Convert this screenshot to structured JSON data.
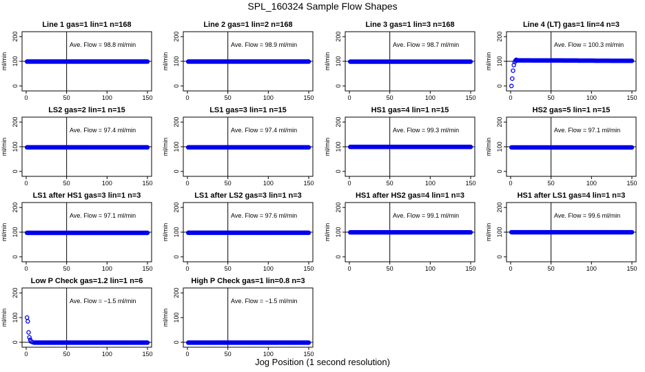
{
  "figure": {
    "title": "SPL_160324  Sample Flow Shapes",
    "xlabel": "Jog Position (1 second resolution)",
    "ylabel": "ml/min",
    "ave_prefix": "Ave. Flow =",
    "ave_unit": "ml/min"
  },
  "chart_data": [
    {
      "type": "scatter",
      "title": "Line 1 gas=1 lin=1 n=168",
      "ylabel": "ml/min",
      "avg_flow": "98.8",
      "xlim": [
        0,
        150
      ],
      "ylim": [
        -20,
        220
      ],
      "yticks": [
        0,
        100,
        200
      ],
      "xticks": [
        0,
        50,
        100,
        150
      ],
      "vline": 50,
      "hline": 100,
      "series": [
        {
          "x": [
            1,
            150
          ],
          "y": [
            98.8,
            98.8
          ]
        }
      ]
    },
    {
      "type": "scatter",
      "title": "Line 2 gas=1 lin=2 n=168",
      "ylabel": "ml/min",
      "avg_flow": "98.9",
      "xlim": [
        0,
        150
      ],
      "ylim": [
        -20,
        220
      ],
      "yticks": [
        0,
        100,
        200
      ],
      "xticks": [
        0,
        50,
        100,
        150
      ],
      "vline": 50,
      "hline": 100,
      "series": [
        {
          "x": [
            1,
            150
          ],
          "y": [
            98.9,
            98.9
          ]
        }
      ]
    },
    {
      "type": "scatter",
      "title": "Line 3 gas=1 lin=3 n=168",
      "ylabel": "ml/min",
      "avg_flow": "98.7",
      "xlim": [
        0,
        150
      ],
      "ylim": [
        -20,
        220
      ],
      "yticks": [
        0,
        100,
        200
      ],
      "xticks": [
        0,
        50,
        100,
        150
      ],
      "vline": 50,
      "hline": 100,
      "series": [
        {
          "x": [
            1,
            150
          ],
          "y": [
            98.7,
            98.7
          ]
        }
      ]
    },
    {
      "type": "scatter",
      "title": "Line 4 (LT) gas=1 lin=4 n=3",
      "ylabel": "ml/min",
      "avg_flow": "100.3",
      "xlim": [
        0,
        150
      ],
      "ylim": [
        -20,
        220
      ],
      "yticks": [
        0,
        100,
        200
      ],
      "xticks": [
        0,
        50,
        100,
        150
      ],
      "vline": 50,
      "hline": 100,
      "series": [
        {
          "x": [
            1,
            2,
            3,
            4,
            5,
            6,
            7,
            8,
            150
          ],
          "y": [
            0,
            30,
            62,
            85,
            97,
            103,
            106,
            104,
            102
          ]
        }
      ]
    },
    {
      "type": "scatter",
      "title": "LS2 gas=2 lin=1 n=15",
      "ylabel": "ml/min",
      "avg_flow": "97.4",
      "xlim": [
        0,
        150
      ],
      "ylim": [
        -20,
        220
      ],
      "yticks": [
        0,
        100,
        200
      ],
      "xticks": [
        0,
        50,
        100,
        150
      ],
      "vline": 50,
      "hline": 100,
      "series": [
        {
          "x": [
            1,
            150
          ],
          "y": [
            97.4,
            97.4
          ]
        }
      ]
    },
    {
      "type": "scatter",
      "title": "LS1 gas=3 lin=1 n=15",
      "ylabel": "ml/min",
      "avg_flow": "97.4",
      "xlim": [
        0,
        150
      ],
      "ylim": [
        -20,
        220
      ],
      "yticks": [
        0,
        100,
        200
      ],
      "xticks": [
        0,
        50,
        100,
        150
      ],
      "vline": 50,
      "hline": 100,
      "series": [
        {
          "x": [
            1,
            150
          ],
          "y": [
            97.4,
            97.4
          ]
        }
      ]
    },
    {
      "type": "scatter",
      "title": "HS1 gas=4 lin=1 n=15",
      "ylabel": "ml/min",
      "avg_flow": "99.3",
      "xlim": [
        0,
        150
      ],
      "ylim": [
        -20,
        220
      ],
      "yticks": [
        0,
        100,
        200
      ],
      "xticks": [
        0,
        50,
        100,
        150
      ],
      "vline": 50,
      "hline": 100,
      "series": [
        {
          "x": [
            1,
            150
          ],
          "y": [
            99.3,
            99.3
          ]
        }
      ]
    },
    {
      "type": "scatter",
      "title": "HS2 gas=5 lin=1 n=15",
      "ylabel": "ml/min",
      "avg_flow": "97.1",
      "xlim": [
        0,
        150
      ],
      "ylim": [
        -20,
        220
      ],
      "yticks": [
        0,
        100,
        200
      ],
      "xticks": [
        0,
        50,
        100,
        150
      ],
      "vline": 50,
      "hline": 100,
      "series": [
        {
          "x": [
            1,
            150
          ],
          "y": [
            97.1,
            97.1
          ]
        }
      ]
    },
    {
      "type": "scatter",
      "title": "LS1 after HS1 gas=3 lin=1 n=3",
      "ylabel": "ml/min",
      "avg_flow": "97.1",
      "xlim": [
        0,
        150
      ],
      "ylim": [
        -20,
        220
      ],
      "yticks": [
        0,
        100,
        200
      ],
      "xticks": [
        0,
        50,
        100,
        150
      ],
      "vline": 50,
      "hline": 100,
      "series": [
        {
          "x": [
            1,
            150
          ],
          "y": [
            97.1,
            97.1
          ]
        }
      ]
    },
    {
      "type": "scatter",
      "title": "LS1 after LS2 gas=3 lin=1 n=3",
      "ylabel": "ml/min",
      "avg_flow": "97.6",
      "xlim": [
        0,
        150
      ],
      "ylim": [
        -20,
        220
      ],
      "yticks": [
        0,
        100,
        200
      ],
      "xticks": [
        0,
        50,
        100,
        150
      ],
      "vline": 50,
      "hline": 100,
      "series": [
        {
          "x": [
            1,
            150
          ],
          "y": [
            97.6,
            97.6
          ]
        }
      ]
    },
    {
      "type": "scatter",
      "title": "HS1 after HS2 gas=4 lin=1 n=3",
      "ylabel": "ml/min",
      "avg_flow": "99.1",
      "xlim": [
        0,
        150
      ],
      "ylim": [
        -20,
        220
      ],
      "yticks": [
        0,
        100,
        200
      ],
      "xticks": [
        0,
        50,
        100,
        150
      ],
      "vline": 50,
      "hline": 100,
      "series": [
        {
          "x": [
            1,
            150
          ],
          "y": [
            99.1,
            99.1
          ]
        }
      ]
    },
    {
      "type": "scatter",
      "title": "HS1 after LS1 gas=4 lin=1 n=3",
      "ylabel": "ml/min",
      "avg_flow": "99.6",
      "xlim": [
        0,
        150
      ],
      "ylim": [
        -20,
        220
      ],
      "yticks": [
        0,
        100,
        200
      ],
      "xticks": [
        0,
        50,
        100,
        150
      ],
      "vline": 50,
      "hline": 100,
      "series": [
        {
          "x": [
            1,
            150
          ],
          "y": [
            99.6,
            99.6
          ]
        }
      ]
    },
    {
      "type": "scatter",
      "title": "Low P Check gas=1.2 lin=1 n=6",
      "ylabel": "ml/min",
      "avg_flow": "−1.5",
      "xlim": [
        0,
        150
      ],
      "ylim": [
        -20,
        220
      ],
      "yticks": [
        0,
        100,
        200
      ],
      "xticks": [
        0,
        50,
        100,
        150
      ],
      "vline": 50,
      "hline": 0,
      "series": [
        {
          "x": [
            1,
            2,
            3,
            4,
            5,
            6,
            8,
            10,
            150
          ],
          "y": [
            100,
            85,
            40,
            20,
            10,
            3,
            0,
            -1.5,
            -1.5
          ]
        }
      ]
    },
    {
      "type": "scatter",
      "title": "High P Check gas=1 lin=0.8 n=3",
      "ylabel": "ml/min",
      "avg_flow": "−1.5",
      "xlim": [
        0,
        150
      ],
      "ylim": [
        -20,
        220
      ],
      "yticks": [
        0,
        100,
        200
      ],
      "xticks": [
        0,
        50,
        100,
        150
      ],
      "vline": 50,
      "hline": 0,
      "series": [
        {
          "x": [
            1,
            150
          ],
          "y": [
            -1.5,
            -1.5
          ]
        }
      ]
    }
  ]
}
